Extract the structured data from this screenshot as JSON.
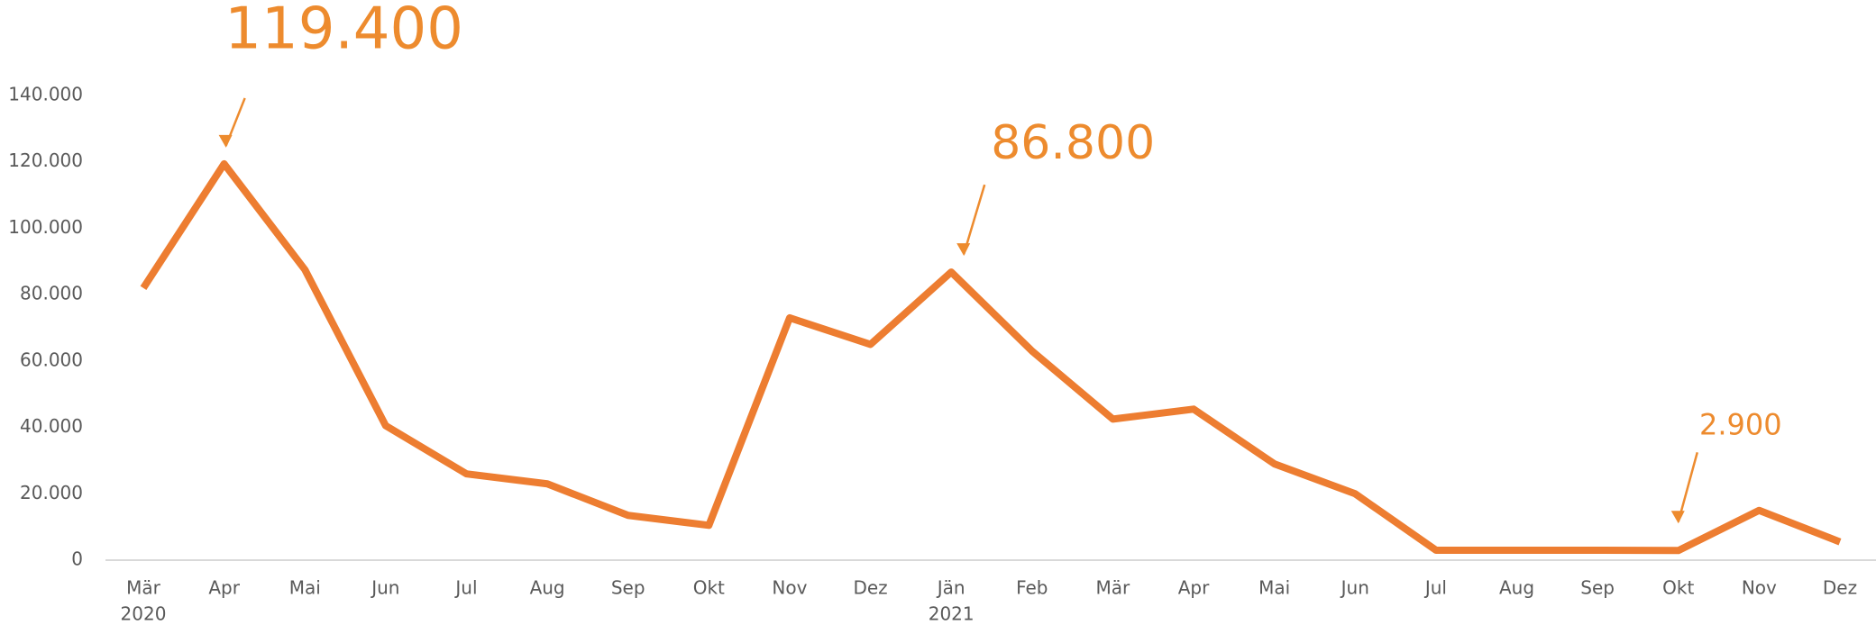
{
  "chart_data": {
    "type": "line",
    "categories": [
      "Mär",
      "Apr",
      "Mai",
      "Jun",
      "Jul",
      "Aug",
      "Sep",
      "Okt",
      "Nov",
      "Dez",
      "Jän",
      "Feb",
      "Mär",
      "Apr",
      "Mai",
      "Jun",
      "Jul",
      "Aug",
      "Sep",
      "Okt",
      "Nov",
      "Dez"
    ],
    "years": [
      "2020",
      null,
      null,
      null,
      null,
      null,
      null,
      null,
      null,
      null,
      "2021",
      null,
      null,
      null,
      null,
      null,
      null,
      null,
      null,
      null,
      null,
      null
    ],
    "series": [
      {
        "color": "#ED7D31",
        "values": [
          82000,
          119400,
          87500,
          40500,
          26000,
          23000,
          13500,
          10500,
          73000,
          65000,
          86800,
          63000,
          42500,
          45500,
          29000,
          20000,
          3000,
          3000,
          3000,
          2900,
          15000,
          5500
        ],
        "value_labels": [
          null,
          "119.400",
          null,
          null,
          null,
          null,
          null,
          null,
          null,
          null,
          "86.800",
          null,
          null,
          null,
          null,
          null,
          null,
          null,
          null,
          "2.900",
          null,
          null
        ]
      }
    ],
    "ylim": [
      0,
      140000
    ],
    "yticks": [
      0,
      {
        "value": 20000,
        "label": "20.000"
      },
      {
        "value": 40000,
        "label": "40.000"
      },
      {
        "value": 60000,
        "label": "60.000"
      },
      {
        "value": 80000,
        "label": "80.000"
      },
      {
        "value": 100000,
        "label": "100.000"
      },
      {
        "value": 120000,
        "label": "120.000"
      },
      {
        "value": 140000,
        "label": "140.000"
      }
    ]
  }
}
